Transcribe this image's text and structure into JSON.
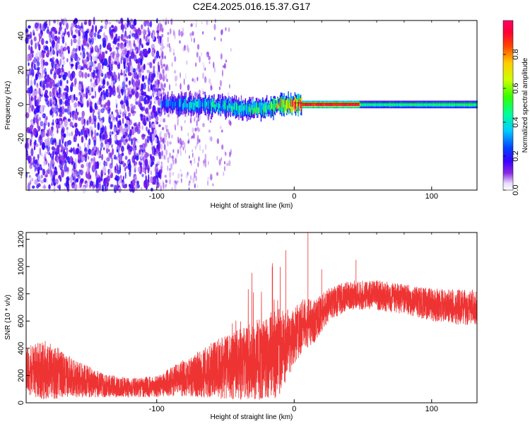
{
  "title": "C2E4.2025.016.15.37.G17",
  "chart_data": [
    {
      "type": "heatmap",
      "xlabel": "Height of straight line (km)",
      "ylabel": "Frequency (Hz)",
      "xlim": [
        -195,
        133
      ],
      "ylim": [
        -50,
        49
      ],
      "xticks": [
        -100,
        0,
        100
      ],
      "yticks": [
        -40,
        -20,
        0,
        20,
        40
      ],
      "colorbar": {
        "label": "Normalized spectral amplitude",
        "range": [
          0,
          1
        ],
        "ticks": [
          0.0,
          0.2,
          0.4,
          0.6,
          0.8
        ]
      },
      "features": {
        "noise_region_x": [
          -195,
          -97
        ],
        "noise_fade_x": [
          -97,
          -45
        ],
        "ridge": [
          {
            "x": -97,
            "y": 0,
            "amp": 0.25
          },
          {
            "x": -90,
            "y": 0,
            "amp": 0.3
          },
          {
            "x": -70,
            "y": 0,
            "amp": 0.35
          },
          {
            "x": -50,
            "y": -1,
            "amp": 0.4
          },
          {
            "x": -35,
            "y": -3,
            "amp": 0.45
          },
          {
            "x": -20,
            "y": -2,
            "amp": 0.5
          },
          {
            "x": -10,
            "y": 0,
            "amp": 0.7
          },
          {
            "x": 0,
            "y": 0,
            "amp": 0.9
          },
          {
            "x": 10,
            "y": 0,
            "amp": 0.95
          },
          {
            "x": 47,
            "y": 0,
            "amp": 0.95
          },
          {
            "x": 48,
            "y": 0,
            "amp": 0.45
          },
          {
            "x": 133,
            "y": 0,
            "amp": 0.5
          }
        ]
      }
    },
    {
      "type": "line",
      "xlabel": "Height of straight line (km)",
      "ylabel": "SNR (10 * v/v)",
      "xlim": [
        -195,
        133
      ],
      "ylim": [
        0,
        1250
      ],
      "xticks": [
        -100,
        0,
        100
      ],
      "yticks": [
        0,
        200,
        400,
        600,
        800,
        1000,
        1200
      ],
      "color": "#ee3333",
      "envelope": [
        {
          "x": -195,
          "base": 230,
          "spread": 180
        },
        {
          "x": -180,
          "base": 240,
          "spread": 220
        },
        {
          "x": -160,
          "base": 180,
          "spread": 140
        },
        {
          "x": -140,
          "base": 130,
          "spread": 90
        },
        {
          "x": -120,
          "base": 110,
          "spread": 70
        },
        {
          "x": -100,
          "base": 120,
          "spread": 80
        },
        {
          "x": -85,
          "base": 170,
          "spread": 120
        },
        {
          "x": -70,
          "base": 210,
          "spread": 170
        },
        {
          "x": -55,
          "base": 250,
          "spread": 220
        },
        {
          "x": -40,
          "base": 280,
          "spread": 260
        },
        {
          "x": -25,
          "base": 320,
          "spread": 300
        },
        {
          "x": -12,
          "base": 360,
          "spread": 330
        },
        {
          "x": -5,
          "base": 430,
          "spread": 250
        },
        {
          "x": 5,
          "base": 560,
          "spread": 200
        },
        {
          "x": 15,
          "base": 600,
          "spread": 160
        },
        {
          "x": 25,
          "base": 720,
          "spread": 120
        },
        {
          "x": 40,
          "base": 790,
          "spread": 110
        },
        {
          "x": 60,
          "base": 790,
          "spread": 110
        },
        {
          "x": 80,
          "base": 760,
          "spread": 110
        },
        {
          "x": 100,
          "base": 720,
          "spread": 120
        },
        {
          "x": 120,
          "base": 700,
          "spread": 130
        },
        {
          "x": 133,
          "base": 700,
          "spread": 130
        }
      ],
      "peaks": [
        {
          "x": -16,
          "y": 1000
        },
        {
          "x": -6,
          "y": 1120
        },
        {
          "x": 10,
          "y": 1250
        },
        {
          "x": 20,
          "y": 980
        },
        {
          "x": 45,
          "y": 1050
        }
      ]
    }
  ]
}
